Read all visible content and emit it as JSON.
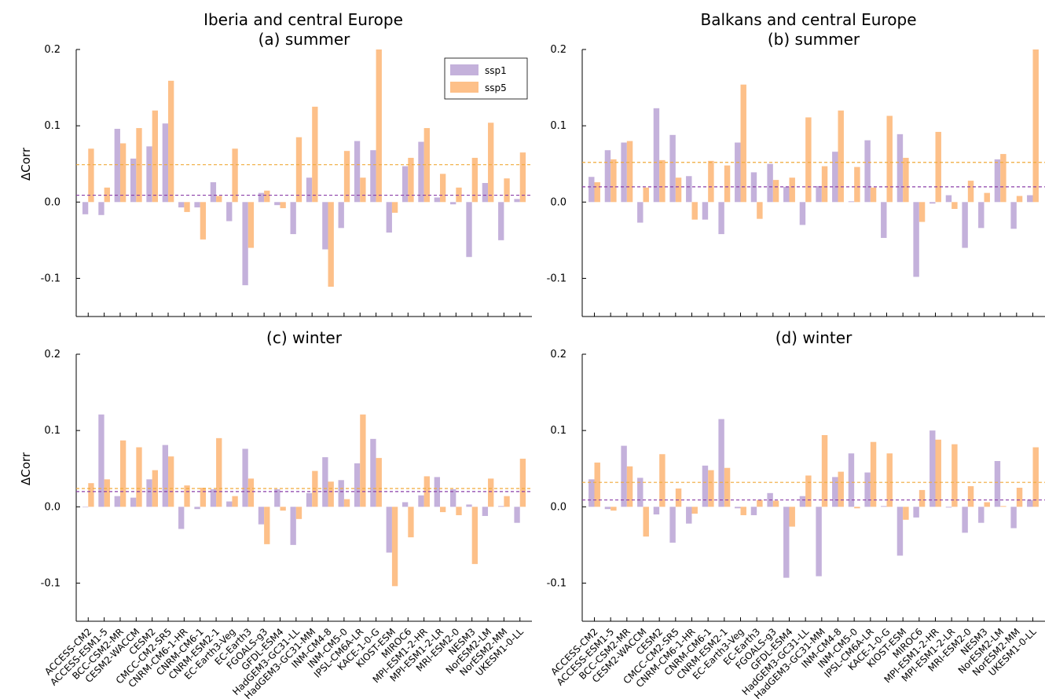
{
  "chart_data": {
    "type": "bar",
    "categories": [
      "ACCESS-CM2",
      "ACCESS-ESM1-5",
      "BCC-CSM2-MR",
      "CESM2-WACCM",
      "CESM2",
      "CMCC-CM2-SR5",
      "CNRM-CM6-1-HR",
      "CNRM-CM6-1",
      "CNRM-ESM2-1",
      "EC-Earth3-Veg",
      "EC-Earth3",
      "FGOALS-g3",
      "GFDL-ESM4",
      "HadGEM3-GC31-LL",
      "HadGEM3-GC31-MM",
      "INM-CM4-8",
      "INM-CM5-0",
      "IPSL-CM6A-LR",
      "KACE-1-0-G",
      "KIOST-ESM",
      "MIROC6",
      "MPI-ESM1-2-HR",
      "MPI-ESM1-2-LR",
      "MRI-ESM2-0",
      "NESM3",
      "NorESM2-LM",
      "NorESM2-MM",
      "UKESM1-0-LL"
    ],
    "ylabel": "ΔCorr",
    "ylim": [
      -0.15,
      0.2
    ],
    "yticks": [
      -0.1,
      0.0,
      0.1,
      0.2
    ],
    "ytick_labels": [
      "-0.1",
      "0.0",
      "0.1",
      "0.2"
    ],
    "legend": {
      "position": "top-right",
      "entries": [
        "ssp1",
        "ssp5"
      ]
    },
    "colors": {
      "ssp1": "#c4b1db",
      "ssp5": "#fdc089",
      "ssp1_line": "#8b3fa8",
      "ssp5_line": "#f0a93a"
    },
    "suptitles": [
      "Iberia and central Europe",
      "Balkans and central Europe"
    ],
    "panels": [
      {
        "title": "(a) summer",
        "series": [
          {
            "name": "ssp1",
            "values": [
              -0.016,
              -0.017,
              0.096,
              0.057,
              0.073,
              0.103,
              -0.007,
              -0.007,
              0.026,
              -0.025,
              -0.109,
              0.012,
              -0.004,
              -0.042,
              0.032,
              -0.062,
              -0.034,
              0.08,
              0.068,
              -0.04,
              0.047,
              0.079,
              0.006,
              -0.003,
              -0.072,
              0.025,
              -0.05,
              0.004
            ]
          },
          {
            "name": "ssp5",
            "values": [
              0.07,
              0.019,
              0.077,
              0.097,
              0.12,
              0.159,
              -0.013,
              -0.049,
              0.008,
              0.07,
              -0.06,
              0.015,
              -0.008,
              0.085,
              0.125,
              -0.111,
              0.067,
              0.032,
              0.2,
              -0.014,
              0.058,
              0.097,
              0.037,
              0.019,
              0.058,
              0.104,
              0.031,
              0.065
            ]
          }
        ],
        "mean_ssp1": 0.009,
        "mean_ssp5": 0.049
      },
      {
        "title": "(b) summer",
        "series": [
          {
            "name": "ssp1",
            "values": [
              0.033,
              0.068,
              0.078,
              -0.027,
              0.123,
              0.088,
              0.034,
              -0.023,
              -0.042,
              0.078,
              0.039,
              0.05,
              0.02,
              -0.03,
              0.021,
              0.066,
              0.001,
              0.081,
              -0.047,
              0.089,
              -0.098,
              -0.002,
              0.009,
              -0.06,
              -0.034,
              0.056,
              -0.035,
              0.009
            ]
          },
          {
            "name": "ssp5",
            "values": [
              0.026,
              0.056,
              0.08,
              0.019,
              0.055,
              0.032,
              -0.023,
              0.054,
              0.048,
              0.154,
              -0.022,
              0.029,
              0.032,
              0.111,
              0.047,
              0.12,
              0.046,
              0.019,
              0.113,
              0.058,
              -0.026,
              0.092,
              -0.009,
              0.028,
              0.012,
              0.063,
              0.008,
              0.2
            ]
          }
        ],
        "mean_ssp1": 0.02,
        "mean_ssp5": 0.052
      },
      {
        "title": "(c) winter",
        "series": [
          {
            "name": "ssp1",
            "values": [
              0.0,
              0.121,
              0.014,
              0.012,
              0.036,
              0.081,
              -0.029,
              -0.003,
              0.023,
              0.007,
              0.076,
              -0.023,
              0.023,
              -0.05,
              0.018,
              0.065,
              0.035,
              0.057,
              0.089,
              -0.06,
              0.006,
              0.015,
              0.039,
              0.023,
              0.003,
              -0.012,
              0.001,
              -0.021
            ]
          },
          {
            "name": "ssp5",
            "values": [
              0.031,
              0.036,
              0.087,
              0.078,
              0.048,
              0.066,
              0.028,
              0.025,
              0.09,
              0.014,
              0.037,
              -0.049,
              -0.005,
              -0.016,
              0.047,
              0.033,
              0.01,
              0.121,
              0.064,
              -0.104,
              -0.04,
              0.04,
              -0.007,
              -0.011,
              -0.075,
              0.037,
              0.014,
              0.063
            ]
          }
        ],
        "mean_ssp1": 0.02,
        "mean_ssp5": 0.024
      },
      {
        "title": "(d) winter",
        "series": [
          {
            "name": "ssp1",
            "values": [
              0.036,
              -0.003,
              0.08,
              0.038,
              -0.01,
              -0.047,
              -0.022,
              0.054,
              0.115,
              -0.002,
              -0.011,
              0.018,
              -0.093,
              0.014,
              -0.091,
              0.039,
              0.07,
              0.045,
              0.001,
              -0.064,
              -0.014,
              0.1,
              -0.001,
              -0.034,
              -0.021,
              0.06,
              -0.028,
              0.009
            ]
          },
          {
            "name": "ssp5",
            "values": [
              0.058,
              -0.005,
              0.053,
              -0.039,
              0.069,
              0.024,
              -0.009,
              0.048,
              0.051,
              -0.011,
              0.009,
              0.008,
              -0.026,
              0.041,
              0.094,
              0.046,
              -0.002,
              0.085,
              0.07,
              -0.017,
              0.022,
              0.088,
              0.082,
              0.027,
              0.006,
              0.001,
              0.025,
              0.078
            ]
          }
        ],
        "mean_ssp1": 0.009,
        "mean_ssp5": 0.032
      }
    ]
  }
}
